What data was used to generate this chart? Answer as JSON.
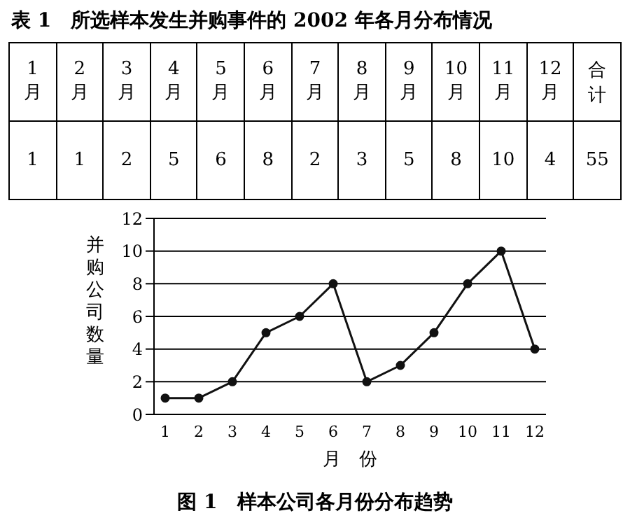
{
  "chart_data": {
    "type": "line",
    "title": "表 1　所选样本发生并购事件的 2002 年各月分布情况",
    "subtitle": "图 1　样本公司各月份分布趋势",
    "xlabel": "月　份",
    "ylabel": "并购公司数量",
    "categories": [
      "1",
      "2",
      "3",
      "4",
      "5",
      "6",
      "7",
      "8",
      "9",
      "10",
      "11",
      "12"
    ],
    "series": [
      {
        "color": "#111111",
        "values": [
          1,
          1,
          2,
          5,
          6,
          8,
          2,
          3,
          5,
          8,
          10,
          4
        ]
      }
    ],
    "ylim": [
      0,
      12
    ],
    "yticks": [
      0,
      2,
      4,
      6,
      8,
      10,
      12
    ],
    "grid": "y",
    "marker": "circle",
    "line_style": "solid",
    "annotations": [
      "月",
      "合计",
      "55"
    ]
  }
}
